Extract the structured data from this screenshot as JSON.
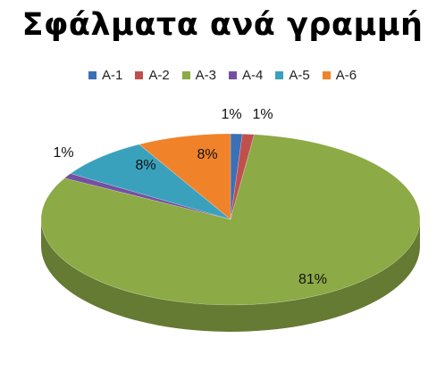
{
  "chart_data": {
    "type": "pie",
    "title": "Σφάλματα ανά γραμμή",
    "legend_position": "top",
    "categories": [
      "A-1",
      "A-2",
      "A-3",
      "A-4",
      "A-5",
      "A-6"
    ],
    "values": [
      1,
      1,
      81,
      1,
      8,
      8
    ],
    "labels": [
      "1%",
      "1%",
      "81%",
      "1%",
      "8%",
      "8%"
    ],
    "colors": [
      "#3b6fb6",
      "#c0504d",
      "#8caa45",
      "#7451a0",
      "#3aa1bd",
      "#f0822a"
    ]
  }
}
